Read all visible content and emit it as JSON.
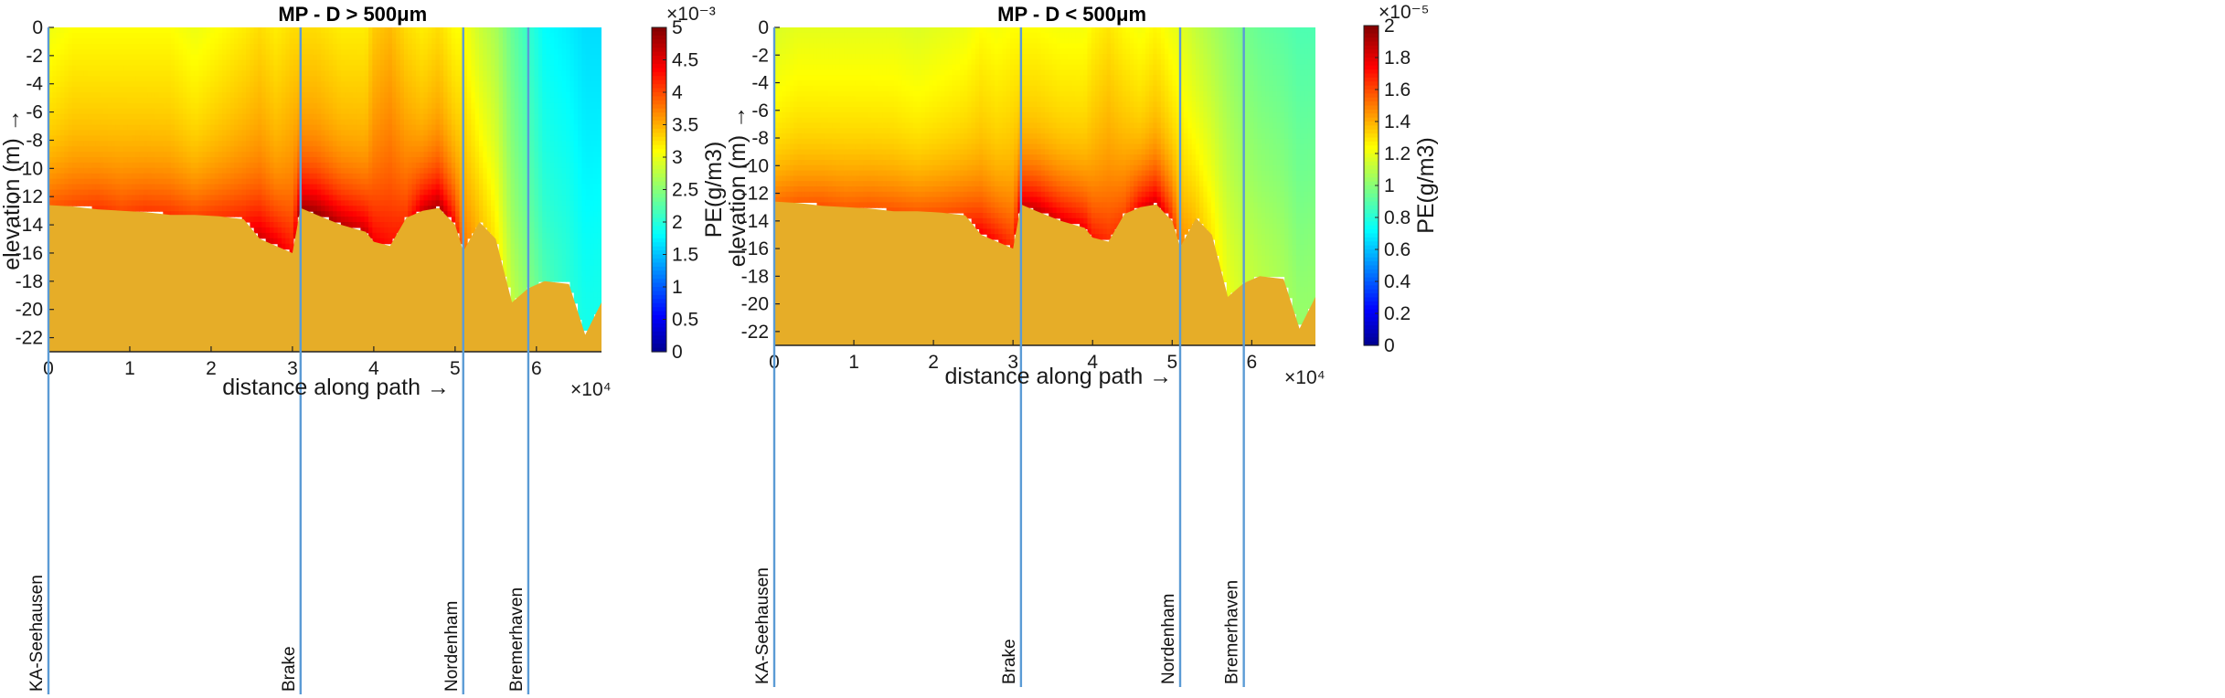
{
  "chart_data": [
    {
      "type": "heatmap",
      "title": "MP - D > 500μm",
      "xlabel": "distance along path →",
      "ylabel": "elevation (m) →",
      "x_multiplier": "×10⁴",
      "xlim": [
        0,
        6.8
      ],
      "ylim": [
        -23,
        0
      ],
      "xticks": [
        "0",
        "1",
        "2",
        "3",
        "4",
        "5",
        "6"
      ],
      "yticks": [
        "0",
        "-2",
        "-4",
        "-6",
        "-8",
        "-10",
        "-12",
        "-14",
        "-16",
        "-18",
        "-20",
        "-22"
      ],
      "colorbar": {
        "label": "PE(g/m3)",
        "multiplier": "×10⁻³",
        "range": [
          0,
          5
        ],
        "ticks": [
          "0",
          "0.5",
          "1",
          "1.5",
          "2",
          "2.5",
          "3",
          "3.5",
          "4",
          "4.5",
          "5"
        ]
      },
      "locations": [
        {
          "name": "KA-Seehausen",
          "x": 0.0
        },
        {
          "name": "Brake",
          "x": 3.1
        },
        {
          "name": "Nordenham",
          "x": 5.1
        },
        {
          "name": "Bremerhaven",
          "x": 5.9
        }
      ],
      "profile_x": [
        0,
        0.3,
        0.6,
        0.9,
        1.2,
        1.5,
        1.8,
        2.1,
        2.4,
        2.6,
        2.8,
        3.0,
        3.1,
        3.3,
        3.6,
        3.9,
        4.0,
        4.2,
        4.4,
        4.6,
        4.8,
        5.0,
        5.1,
        5.3,
        5.5,
        5.7,
        5.9,
        6.1,
        6.4,
        6.6,
        6.8
      ],
      "bed_depth": [
        -12.6,
        -12.7,
        -12.9,
        -13.0,
        -13.1,
        -13.3,
        -13.3,
        -13.4,
        -13.6,
        -15.0,
        -15.5,
        -16.0,
        -12.8,
        -13.3,
        -14.0,
        -14.5,
        -15.2,
        -15.5,
        -13.5,
        -13.0,
        -12.8,
        -14.0,
        -15.9,
        -13.8,
        -15.0,
        -19.5,
        -18.5,
        -18.0,
        -18.2,
        -21.8,
        -19.5
      ],
      "conc_profile": [
        3.5,
        3.6,
        3.6,
        3.6,
        3.6,
        3.6,
        3.5,
        3.6,
        3.7,
        3.8,
        3.7,
        3.8,
        3.8,
        3.8,
        3.7,
        3.7,
        3.9,
        4.0,
        3.8,
        3.7,
        3.8,
        3.6,
        3.6,
        3.3,
        3.1,
        2.7,
        2.4,
        2.1,
        2.0,
        1.9,
        1.9
      ],
      "conc_near_bed": [
        3.9,
        4.0,
        4.1,
        4.0,
        4.1,
        4.1,
        4.0,
        4.1,
        4.2,
        4.6,
        4.5,
        4.3,
        4.8,
        4.9,
        4.7,
        4.6,
        4.4,
        4.3,
        4.1,
        4.6,
        4.8,
        4.3,
        3.8,
        3.4,
        3.2,
        2.8,
        2.5,
        2.2,
        2.0,
        1.9,
        1.9
      ]
    },
    {
      "type": "heatmap",
      "title": "MP - D < 500μm",
      "xlabel": "distance along path →",
      "ylabel": "elevation (m) →",
      "x_multiplier": "×10⁴",
      "xlim": [
        0,
        6.8
      ],
      "ylim": [
        -23,
        0
      ],
      "xticks": [
        "0",
        "1",
        "2",
        "3",
        "4",
        "5",
        "6"
      ],
      "yticks": [
        "0",
        "-2",
        "-4",
        "-6",
        "-8",
        "-10",
        "-12",
        "-14",
        "-16",
        "-18",
        "-20",
        "-22"
      ],
      "colorbar": {
        "label": "PE(g/m3)",
        "multiplier": "×10⁻⁵",
        "range": [
          0,
          2
        ],
        "ticks": [
          "0",
          "0.2",
          "0.4",
          "0.6",
          "0.8",
          "1",
          "1.2",
          "1.4",
          "1.6",
          "1.8",
          "2"
        ]
      },
      "locations": [
        {
          "name": "KA-Seehausen",
          "x": 0.0
        },
        {
          "name": "Brake",
          "x": 3.1
        },
        {
          "name": "Nordenham",
          "x": 5.1
        },
        {
          "name": "Bremerhaven",
          "x": 5.9
        }
      ],
      "profile_x": [
        0,
        0.3,
        0.6,
        0.9,
        1.2,
        1.5,
        1.8,
        2.1,
        2.4,
        2.6,
        2.8,
        3.0,
        3.1,
        3.3,
        3.6,
        3.9,
        4.0,
        4.2,
        4.4,
        4.6,
        4.8,
        5.0,
        5.1,
        5.3,
        5.5,
        5.7,
        5.9,
        6.1,
        6.4,
        6.6,
        6.8
      ],
      "bed_depth": [
        -12.6,
        -12.7,
        -12.9,
        -13.0,
        -13.1,
        -13.3,
        -13.3,
        -13.4,
        -13.6,
        -15.0,
        -15.5,
        -16.0,
        -12.8,
        -13.3,
        -14.0,
        -14.5,
        -15.2,
        -15.5,
        -13.5,
        -13.0,
        -12.8,
        -14.0,
        -15.9,
        -13.8,
        -15.0,
        -19.5,
        -18.5,
        -18.0,
        -18.2,
        -21.8,
        -19.5
      ],
      "conc_profile": [
        1.35,
        1.38,
        1.38,
        1.38,
        1.38,
        1.38,
        1.36,
        1.38,
        1.4,
        1.44,
        1.42,
        1.44,
        1.44,
        1.44,
        1.42,
        1.42,
        1.46,
        1.5,
        1.45,
        1.42,
        1.46,
        1.4,
        1.38,
        1.3,
        1.24,
        1.18,
        1.12,
        1.08,
        1.05,
        1.02,
        1.02
      ],
      "conc_near_bed": [
        1.52,
        1.56,
        1.58,
        1.56,
        1.58,
        1.58,
        1.56,
        1.58,
        1.62,
        1.76,
        1.72,
        1.66,
        1.82,
        1.86,
        1.8,
        1.76,
        1.7,
        1.66,
        1.6,
        1.76,
        1.84,
        1.66,
        1.48,
        1.36,
        1.28,
        1.2,
        1.14,
        1.1,
        1.06,
        1.03,
        1.02
      ]
    }
  ]
}
